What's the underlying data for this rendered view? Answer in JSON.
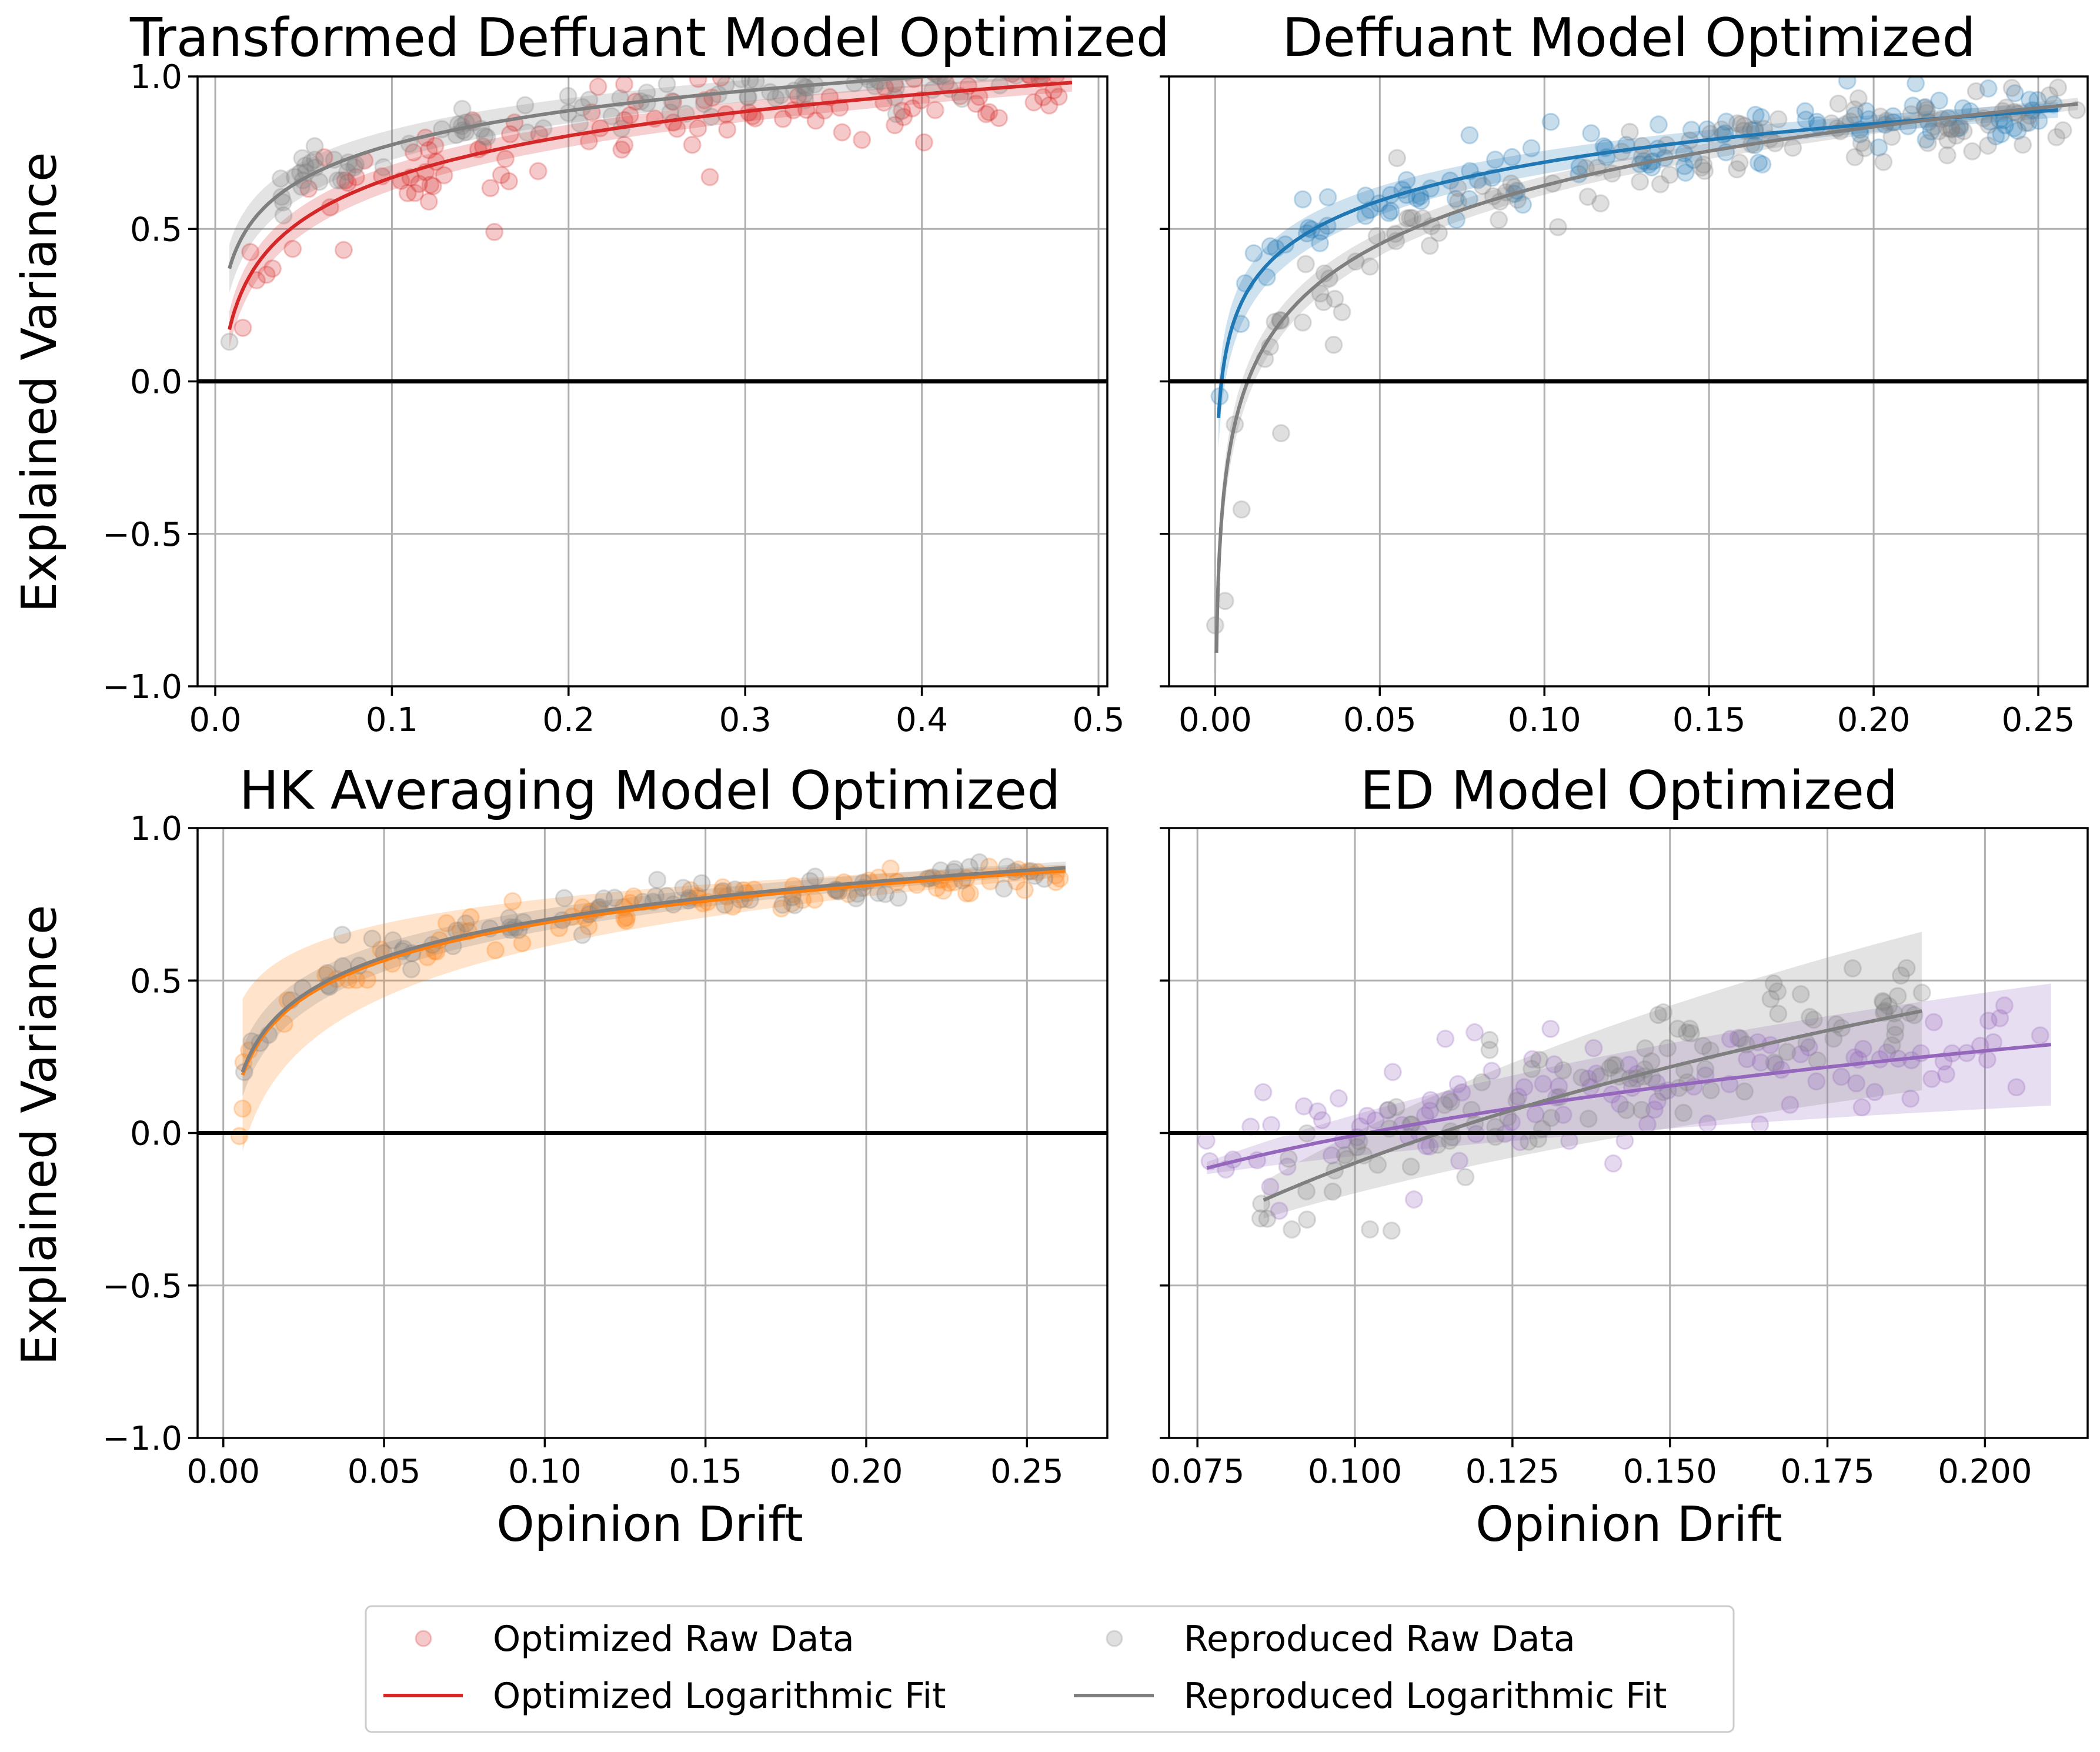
{
  "chart_data": [
    {
      "type": "scatter",
      "title": "Transformed Deffuant Model Optimized",
      "xlabel": "",
      "ylabel": "Explained Variance",
      "xlim": [
        -0.01,
        0.505
      ],
      "ylim": [
        -1.0,
        1.0
      ],
      "xticks": [
        0.0,
        0.1,
        0.2,
        0.3,
        0.4,
        0.5
      ],
      "xtick_labels": [
        "0.0",
        "0.1",
        "0.2",
        "0.3",
        "0.4",
        "0.5"
      ],
      "yticks": [
        -1.0,
        -0.5,
        0.0,
        0.5,
        1.0
      ],
      "ytick_labels": [
        "−1.0",
        "−0.5",
        "0.0",
        "0.5",
        "1.0"
      ],
      "grid": true,
      "reference_line_y": 0,
      "series": [
        {
          "role": "optimized",
          "color": "#d62728",
          "fit": {
            "x_start": 0.008,
            "x_end": 0.485,
            "y_start": 0.17,
            "y_end": 0.98,
            "band_start": 0.06,
            "band_end": 0.03
          },
          "n_points": 110,
          "x_range": [
            0.008,
            0.485
          ],
          "noise": 0.07,
          "outliers": [
            [
              0.158,
              0.49
            ],
            [
              0.28,
              0.67
            ],
            [
              0.125,
              0.72
            ],
            [
              0.23,
              0.76
            ]
          ]
        },
        {
          "role": "reproduced",
          "color": "#7f7f7f",
          "fit": {
            "x_start": 0.008,
            "x_end": 0.485,
            "y_start": 0.37,
            "y_end": 1.03,
            "band_start": 0.08,
            "band_end": 0.03
          },
          "n_points": 110,
          "x_range": [
            0.008,
            0.485
          ],
          "noise": 0.04,
          "outliers": [
            [
              0.008,
              0.13
            ]
          ]
        }
      ]
    },
    {
      "type": "scatter",
      "title": "Deffuant Model Optimized",
      "xlabel": "",
      "ylabel": "",
      "xlim": [
        -0.014,
        0.265
      ],
      "ylim": [
        -1.0,
        1.0
      ],
      "xticks": [
        0.0,
        0.05,
        0.1,
        0.15,
        0.2,
        0.25
      ],
      "xtick_labels": [
        "0.00",
        "0.05",
        "0.10",
        "0.15",
        "0.20",
        "0.25"
      ],
      "yticks": [
        -1.0,
        -0.5,
        0.0,
        0.5,
        1.0
      ],
      "ytick_labels": [],
      "grid": true,
      "reference_line_y": 0,
      "series": [
        {
          "role": "optimized",
          "color": "#1f77b4",
          "fit": {
            "x_start": 0.001,
            "x_end": 0.256,
            "y_start": -0.12,
            "y_end": 0.89,
            "band_start": 0.1,
            "band_end": 0.025
          },
          "n_points": 120,
          "x_range": [
            0.0,
            0.255
          ],
          "noise": 0.05,
          "outliers": []
        },
        {
          "role": "reproduced",
          "color": "#7f7f7f",
          "fit": {
            "x_start": 0.0004,
            "x_end": 0.262,
            "y_start": -0.89,
            "y_end": 0.91,
            "band_start": 0.09,
            "band_end": 0.02
          },
          "n_points": 120,
          "x_range": [
            0.0,
            0.262
          ],
          "noise": 0.06,
          "outliers": [
            [
              0.0,
              -0.8
            ],
            [
              0.003,
              -0.72
            ],
            [
              0.008,
              -0.42
            ],
            [
              0.02,
              -0.17
            ],
            [
              0.036,
              0.12
            ]
          ]
        }
      ]
    },
    {
      "type": "scatter",
      "title": "HK Averaging Model Optimized",
      "xlabel": "Opinion Drift",
      "ylabel": "Explained Variance",
      "xlim": [
        -0.008,
        0.275
      ],
      "ylim": [
        -1.0,
        1.0
      ],
      "xticks": [
        0.0,
        0.05,
        0.1,
        0.15,
        0.2,
        0.25
      ],
      "xtick_labels": [
        "0.00",
        "0.05",
        "0.10",
        "0.15",
        "0.20",
        "0.25"
      ],
      "yticks": [
        -1.0,
        -0.5,
        0.0,
        0.5,
        1.0
      ],
      "ytick_labels": [
        "−1.0",
        "−0.5",
        "0.0",
        "0.5",
        "1.0"
      ],
      "grid": true,
      "reference_line_y": 0,
      "series": [
        {
          "role": "optimized",
          "color": "#ff7f0e",
          "fit": {
            "x_start": 0.006,
            "x_end": 0.262,
            "y_start": 0.19,
            "y_end": 0.86,
            "band_start": 0.25,
            "band_end": 0.02
          },
          "n_points": 80,
          "x_range": [
            0.005,
            0.262
          ],
          "noise": 0.035,
          "outliers": [
            [
              0.005,
              -0.01
            ],
            [
              0.006,
              0.08
            ],
            [
              0.09,
              0.76
            ]
          ]
        },
        {
          "role": "reproduced",
          "color": "#7f7f7f",
          "fit": {
            "x_start": 0.006,
            "x_end": 0.262,
            "y_start": 0.2,
            "y_end": 0.87,
            "band_start": 0.08,
            "band_end": 0.02
          },
          "n_points": 80,
          "x_range": [
            0.005,
            0.262
          ],
          "noise": 0.03,
          "outliers": [
            [
              0.037,
              0.65
            ],
            [
              0.135,
              0.83
            ]
          ]
        }
      ]
    },
    {
      "type": "scatter",
      "title": "ED Model Optimized",
      "xlabel": "Opinion Drift",
      "ylabel": "",
      "xlim": [
        0.0705,
        0.2163
      ],
      "ylim": [
        -1.0,
        1.0
      ],
      "xticks": [
        0.075,
        0.1,
        0.125,
        0.15,
        0.175,
        0.2
      ],
      "xtick_labels": [
        "0.075",
        "0.100",
        "0.125",
        "0.150",
        "0.175",
        "0.200"
      ],
      "yticks": [
        -1.0,
        -0.5,
        0.0,
        0.5,
        1.0
      ],
      "ytick_labels": [],
      "grid": true,
      "reference_line_y": 0,
      "series": [
        {
          "role": "optimized",
          "color": "#9467bd",
          "fit": {
            "x_start": 0.0765,
            "x_end": 0.2105,
            "y_start": -0.115,
            "y_end": 0.29,
            "band_start": 0.02,
            "band_end": 0.2
          },
          "n_points": 110,
          "x_range": [
            0.076,
            0.21
          ],
          "noise": 0.09,
          "outliers": [
            [
              0.119,
              0.33
            ],
            [
              0.205,
              0.15
            ],
            [
              0.141,
              -0.1
            ],
            [
              0.106,
              0.2
            ]
          ]
        },
        {
          "role": "reproduced",
          "color": "#7f7f7f",
          "fit": {
            "x_start": 0.0855,
            "x_end": 0.19,
            "y_start": -0.22,
            "y_end": 0.4,
            "band_start": 0.06,
            "band_end": 0.26
          },
          "n_points": 110,
          "x_range": [
            0.085,
            0.19
          ],
          "noise": 0.09,
          "outliers": [
            [
              0.085,
              -0.28
            ],
            [
              0.179,
              0.54
            ],
            [
              0.19,
              0.46
            ]
          ]
        }
      ]
    }
  ],
  "legend": {
    "placement": "bottom-center",
    "items": [
      {
        "label": "Optimized Raw Data",
        "kind": "marker",
        "color": "#d62728"
      },
      {
        "label": "Reproduced Raw Data",
        "kind": "marker",
        "color": "#7f7f7f"
      },
      {
        "label": "Optimized Logarithmic Fit",
        "kind": "line",
        "color": "#d62728"
      },
      {
        "label": "Reproduced Logarithmic Fit",
        "kind": "line",
        "color": "#7f7f7f"
      }
    ]
  }
}
